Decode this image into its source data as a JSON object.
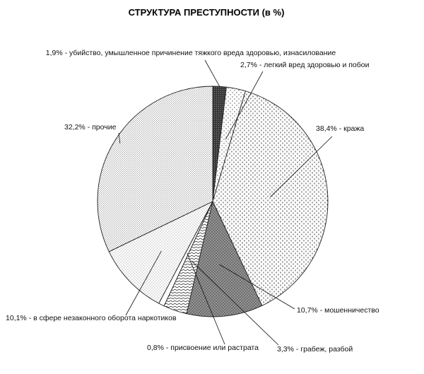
{
  "chart_data": {
    "type": "pie",
    "title": "СТРУКТУРА ПРЕСТУПНОСТИ  (в %)",
    "slices": [
      {
        "value": 1.9,
        "label": "1,9% - убийство, умышленное причинение тяжкого вреда здоровью, изнасилование",
        "pattern": "dark"
      },
      {
        "value": 2.7,
        "label": "2,7% - легкий вред здоровью и побои",
        "pattern": "sparse-dots"
      },
      {
        "value": 38.4,
        "label": "38,4% - кража",
        "pattern": "dashes"
      },
      {
        "value": 10.7,
        "label": "10,7% - мошенничество",
        "pattern": "dark-mesh"
      },
      {
        "value": 3.3,
        "label": "3,3% - грабеж, разбой",
        "pattern": "wavy"
      },
      {
        "value": 0.8,
        "label": "0,8% - присвоение или растрата",
        "pattern": "white"
      },
      {
        "value": 10.1,
        "label": "10,1% - в сфере незаконного оборота наркотиков",
        "pattern": "fine-dots"
      },
      {
        "value": 32.2,
        "label": "32,2% - прочие",
        "pattern": "dense-dots"
      }
    ],
    "start_angle_deg": 0,
    "direction": "clockwise",
    "legend": "none",
    "labels": "outside with leader lines"
  }
}
